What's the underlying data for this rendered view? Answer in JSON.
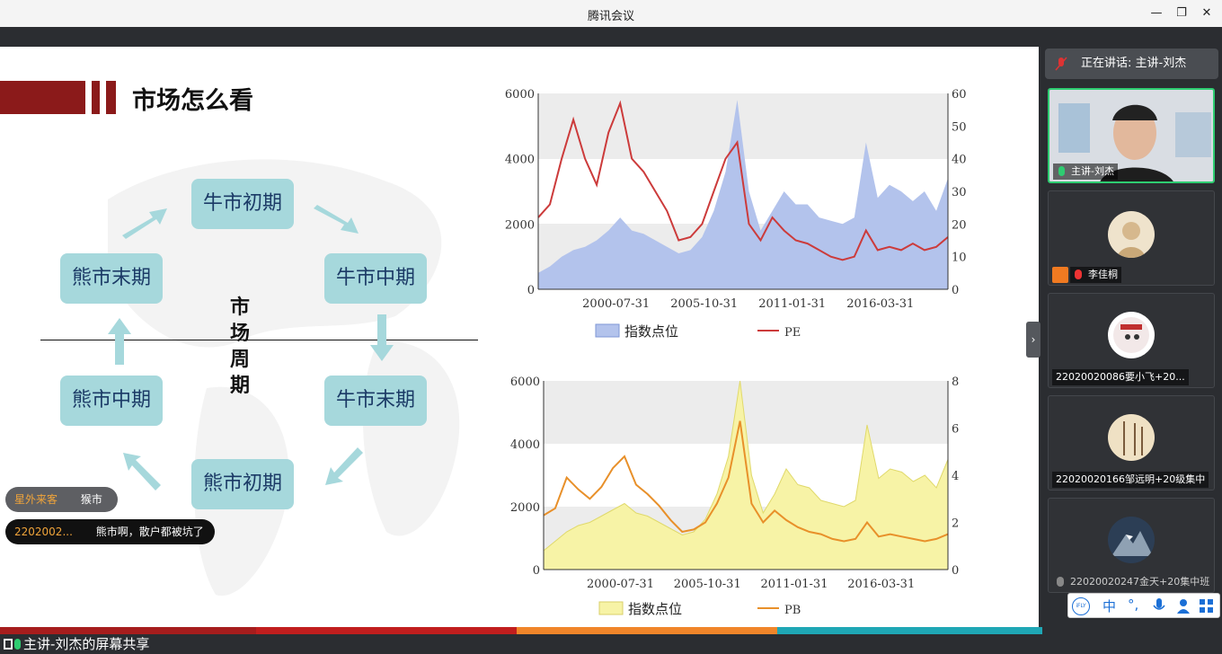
{
  "window": {
    "title": "腾讯会议"
  },
  "slide": {
    "title": "市场怎么看",
    "cycle_center": "市场周期",
    "cycle": [
      "牛市初期",
      "牛市中期",
      "牛市末期",
      "熊市初期",
      "熊市中期",
      "熊市末期"
    ]
  },
  "chat": [
    {
      "user": "星外来客",
      "text": "猴市"
    },
    {
      "user": "2202002...",
      "text": "熊市啊，散户都被坑了"
    }
  ],
  "share_label": "主讲-刘杰的屏幕共享",
  "sidebar": {
    "speaking": "正在讲话: 主讲-刘杰",
    "participants": [
      {
        "name": "主讲-刘杰"
      },
      {
        "name": "李佳桐"
      },
      {
        "name": "22020020086要小飞+20..."
      },
      {
        "name": "22020020166邹远明+20级集中"
      },
      {
        "name": "22020020247金天+20集中班"
      }
    ],
    "ime_toolbar": [
      "iFLY",
      "中",
      "°,",
      "mic",
      "user",
      "grid"
    ]
  },
  "colors": {
    "pe_line": "#cc3b3b",
    "pb_line": "#e8902a",
    "index_fill_blue": "#b3c3ec",
    "index_fill_yellow": "#f7f3a6",
    "accent_red": "#8b1a1a"
  },
  "chart_data": [
    {
      "type": "area",
      "title": "",
      "x_ticks": [
        "2000-07-31",
        "2005-10-31",
        "2011-01-31",
        "2016-03-31"
      ],
      "y_left_ticks": [
        "0",
        "2000",
        "4000",
        "6000"
      ],
      "y_right_ticks": [
        "0",
        "10",
        "20",
        "30",
        "40",
        "50",
        "60"
      ],
      "ylim_left": [
        0,
        6000
      ],
      "ylim_right": [
        0,
        60
      ],
      "legend_placement": "bottom",
      "series": [
        {
          "name": "指数点位",
          "axis": "left",
          "values": [
            500,
            700,
            1000,
            1200,
            1300,
            1500,
            1800,
            2200,
            1800,
            1700,
            1500,
            1300,
            1100,
            1200,
            1600,
            2400,
            3600,
            5800,
            3000,
            1800,
            2400,
            3000,
            2600,
            2600,
            2200,
            2100,
            2000,
            2200,
            4500,
            2800,
            3200,
            3000,
            2700,
            3000,
            2400,
            3400
          ]
        },
        {
          "name": "PE",
          "axis": "right",
          "values": [
            22,
            26,
            40,
            52,
            40,
            32,
            48,
            57,
            40,
            36,
            30,
            24,
            15,
            16,
            20,
            30,
            40,
            45,
            20,
            15,
            22,
            18,
            15,
            14,
            12,
            10,
            9,
            10,
            18,
            12,
            13,
            12,
            14,
            12,
            13,
            16
          ]
        }
      ]
    },
    {
      "type": "area",
      "title": "",
      "x_ticks": [
        "2000-07-31",
        "2005-10-31",
        "2011-01-31",
        "2016-03-31"
      ],
      "y_left_ticks": [
        "0",
        "2000",
        "4000",
        "6000"
      ],
      "y_right_ticks": [
        "0",
        "2",
        "4",
        "6",
        "8"
      ],
      "ylim_left": [
        0,
        6000
      ],
      "ylim_right": [
        0,
        8
      ],
      "legend_placement": "bottom",
      "series": [
        {
          "name": "指数点位",
          "axis": "left",
          "values": [
            600,
            900,
            1200,
            1400,
            1500,
            1700,
            1900,
            2100,
            1800,
            1700,
            1500,
            1300,
            1100,
            1200,
            1600,
            2400,
            3600,
            6000,
            3000,
            1800,
            2400,
            3200,
            2700,
            2600,
            2200,
            2100,
            2000,
            2200,
            4600,
            2900,
            3200,
            3100,
            2800,
            3000,
            2600,
            3500
          ]
        },
        {
          "name": "PB",
          "axis": "right",
          "values": [
            2.3,
            2.6,
            3.9,
            3.4,
            3.0,
            3.5,
            4.3,
            4.8,
            3.6,
            3.2,
            2.7,
            2.1,
            1.6,
            1.7,
            2.0,
            2.8,
            3.9,
            6.3,
            2.8,
            2.0,
            2.5,
            2.1,
            1.8,
            1.6,
            1.5,
            1.3,
            1.2,
            1.3,
            2.0,
            1.4,
            1.5,
            1.4,
            1.3,
            1.2,
            1.3,
            1.5
          ]
        }
      ]
    }
  ]
}
